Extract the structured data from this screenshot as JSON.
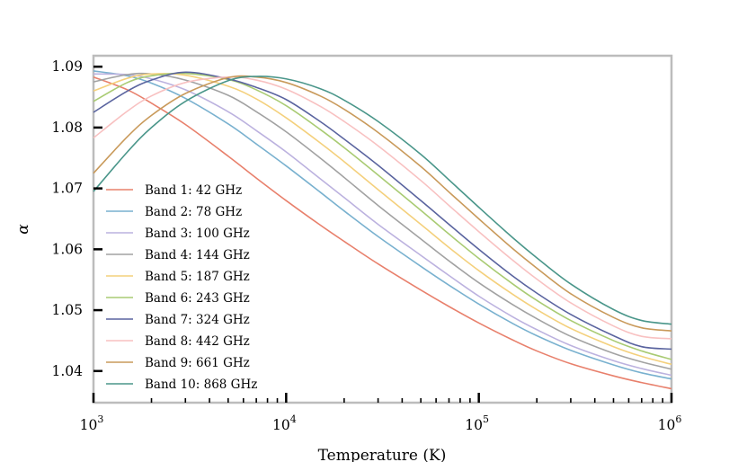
{
  "chart_data": {
    "type": "line",
    "title": "",
    "xlabel": "Temperature (K)",
    "ylabel": "α",
    "xscale": "log",
    "xlim": [
      1000,
      1000000
    ],
    "ylim": [
      1.0348,
      1.0918
    ],
    "grid": false,
    "legend_position": "left-center",
    "x_ticks": [
      {
        "base": "10",
        "exp": "3",
        "value": 1000
      },
      {
        "base": "10",
        "exp": "4",
        "value": 10000
      },
      {
        "base": "10",
        "exp": "5",
        "value": 100000
      },
      {
        "base": "10",
        "exp": "6",
        "value": 1000000
      }
    ],
    "y_ticks": [
      {
        "label": "1.04",
        "value": 1.04
      },
      {
        "label": "1.05",
        "value": 1.05
      },
      {
        "label": "1.06",
        "value": 1.06
      },
      {
        "label": "1.07",
        "value": 1.07
      },
      {
        "label": "1.08",
        "value": 1.08
      },
      {
        "label": "1.09",
        "value": 1.09
      }
    ],
    "x": [
      1000,
      1500,
      2000,
      3000,
      5000,
      7000,
      10000,
      15000,
      20000,
      30000,
      50000,
      70000,
      100000,
      150000,
      200000,
      300000,
      500000,
      700000,
      1000000
    ],
    "series": [
      {
        "name": "Band 1: 42 GHz",
        "color": "#e8806c",
        "values": [
          1.0883,
          1.0862,
          1.084,
          1.0805,
          1.0753,
          1.0717,
          1.068,
          1.064,
          1.0613,
          1.0576,
          1.0533,
          1.0506,
          1.0479,
          1.0451,
          1.0433,
          1.0412,
          1.0392,
          1.0381,
          1.0371
        ]
      },
      {
        "name": "Band 2: 78 GHz",
        "color": "#79b1cf",
        "values": [
          1.0893,
          1.0885,
          1.0873,
          1.0848,
          1.0806,
          1.0773,
          1.0737,
          1.0694,
          1.0663,
          1.0621,
          1.0572,
          1.0541,
          1.051,
          1.0478,
          1.0458,
          1.0434,
          1.041,
          1.0397,
          1.0387
        ]
      },
      {
        "name": "Band 3: 100 GHz",
        "color": "#bcb2df",
        "values": [
          1.0888,
          1.0887,
          1.088,
          1.0862,
          1.0826,
          1.0795,
          1.076,
          1.0716,
          1.0685,
          1.0641,
          1.059,
          1.0557,
          1.0523,
          1.0489,
          1.0468,
          1.0442,
          1.0417,
          1.0404,
          1.0393
        ]
      },
      {
        "name": "Band 4: 144 GHz",
        "color": "#a2a2a2",
        "values": [
          1.0875,
          1.0887,
          1.0888,
          1.0878,
          1.0853,
          1.0826,
          1.0793,
          1.075,
          1.0718,
          1.0672,
          1.0617,
          1.0581,
          1.0545,
          1.0509,
          1.0486,
          1.0457,
          1.0429,
          1.0415,
          1.0403
        ]
      },
      {
        "name": "Band 5: 187 GHz",
        "color": "#f4d07c",
        "values": [
          1.086,
          1.0881,
          1.0888,
          1.0886,
          1.0868,
          1.0847,
          1.0816,
          1.0775,
          1.0744,
          1.0698,
          1.0641,
          1.0603,
          1.0565,
          1.0526,
          1.0501,
          1.047,
          1.044,
          1.0424,
          1.0411
        ]
      },
      {
        "name": "Band 6: 243 GHz",
        "color": "#a9cb73",
        "values": [
          1.0843,
          1.0874,
          1.0885,
          1.0889,
          1.0879,
          1.0862,
          1.0836,
          1.0797,
          1.0767,
          1.0722,
          1.0664,
          1.0625,
          1.0585,
          1.0543,
          1.0516,
          1.0483,
          1.045,
          1.0433,
          1.0419
        ]
      },
      {
        "name": "Band 7: 324 GHz",
        "color": "#5a649f",
        "values": [
          1.0825,
          1.086,
          1.0878,
          1.0891,
          1.088,
          1.0866,
          1.0846,
          1.081,
          1.0781,
          1.0738,
          1.068,
          1.0641,
          1.06,
          1.0556,
          1.0528,
          1.0493,
          1.0458,
          1.044,
          1.0436
        ]
      },
      {
        "name": "Band 8: 442 GHz",
        "color": "#f8c1c1",
        "values": [
          1.0783,
          1.0827,
          1.0852,
          1.0874,
          1.0883,
          1.0878,
          1.0863,
          1.0835,
          1.081,
          1.077,
          1.0713,
          1.0672,
          1.0629,
          1.0582,
          1.0551,
          1.0512,
          1.0474,
          1.0457,
          1.0453
        ]
      },
      {
        "name": "Band 9: 661 GHz",
        "color": "#c99a5b",
        "values": [
          1.0725,
          1.0785,
          1.082,
          1.0856,
          1.0882,
          1.0883,
          1.0874,
          1.0852,
          1.083,
          1.0792,
          1.0736,
          1.0694,
          1.065,
          1.0601,
          1.0569,
          1.0527,
          1.0488,
          1.0471,
          1.0466
        ]
      },
      {
        "name": "Band 10: 868 GHz",
        "color": "#4a968a",
        "values": [
          1.0695,
          1.076,
          1.08,
          1.0843,
          1.0877,
          1.0884,
          1.088,
          1.0864,
          1.0845,
          1.081,
          1.0756,
          1.0714,
          1.0669,
          1.0619,
          1.0586,
          1.0543,
          1.0501,
          1.0483,
          1.0477
        ]
      }
    ]
  }
}
